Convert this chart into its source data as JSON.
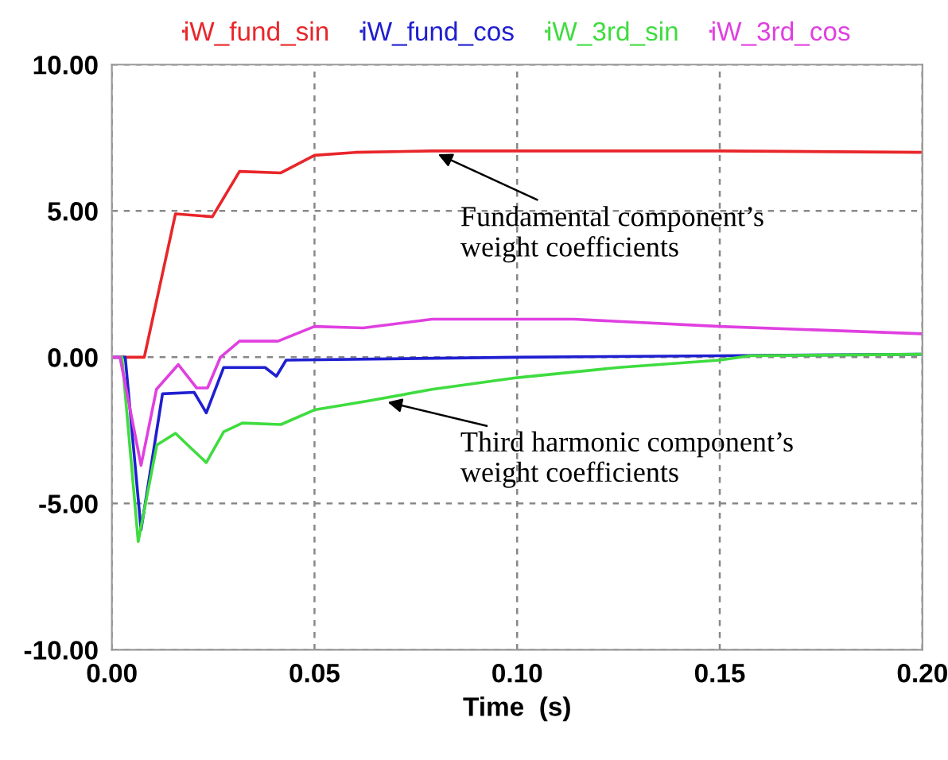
{
  "chart_data": {
    "type": "line",
    "xlabel": "Time  (s)",
    "xlim": [
      0,
      0.2
    ],
    "ylim": [
      -10,
      10
    ],
    "xticks": [
      {
        "value": 0,
        "label": "0.00"
      },
      {
        "value": 0.05,
        "label": "0.05"
      },
      {
        "value": 0.1,
        "label": "0.10"
      },
      {
        "value": 0.15,
        "label": "0.15"
      },
      {
        "value": 0.2,
        "label": "0.20"
      }
    ],
    "yticks": [
      {
        "value": -10,
        "label": "-10.00"
      },
      {
        "value": -5,
        "label": "-5.00"
      },
      {
        "value": 0,
        "label": "0.00"
      },
      {
        "value": 5,
        "label": "5.00"
      },
      {
        "value": 10,
        "label": "10.00"
      }
    ],
    "grid": true,
    "legend": "top",
    "line_style": "solid",
    "marker": "none",
    "series": [
      {
        "name": "iW_fund_sin",
        "color": "#e8262a",
        "x": [
          0,
          0.008,
          0.0157,
          0.0248,
          0.0315,
          0.0417,
          0.05,
          0.06,
          0.079,
          0.1,
          0.15,
          0.2
        ],
        "values": [
          0,
          0,
          4.9,
          4.8,
          6.35,
          6.3,
          6.9,
          7.0,
          7.05,
          7.05,
          7.05,
          7.0
        ]
      },
      {
        "name": "iW_fund_cos",
        "color": "#1f1fd0",
        "x": [
          0,
          0.0033,
          0.0072,
          0.0125,
          0.0203,
          0.0233,
          0.0276,
          0.0378,
          0.0406,
          0.043,
          0.1,
          0.15,
          0.2
        ],
        "values": [
          0,
          0,
          -5.9,
          -1.25,
          -1.2,
          -1.9,
          -0.35,
          -0.35,
          -0.65,
          -0.1,
          0,
          0.05,
          0.1
        ]
      },
      {
        "name": "iW_3rd_sin",
        "color": "#3fdc3f",
        "x": [
          0,
          0.0025,
          0.0065,
          0.0111,
          0.0157,
          0.0187,
          0.0233,
          0.0276,
          0.0322,
          0.0417,
          0.05,
          0.063,
          0.079,
          0.1,
          0.125,
          0.15,
          0.1575,
          0.2
        ],
        "values": [
          0,
          0,
          -6.3,
          -3.0,
          -2.6,
          -3.0,
          -3.6,
          -2.55,
          -2.25,
          -2.3,
          -1.8,
          -1.5,
          -1.1,
          -0.7,
          -0.35,
          -0.1,
          0.05,
          0.1
        ]
      },
      {
        "name": "iW_3rd_cos",
        "color": "#e040e0",
        "x": [
          0,
          0.002,
          0.0072,
          0.011,
          0.0164,
          0.0209,
          0.0236,
          0.0268,
          0.0315,
          0.041,
          0.05,
          0.062,
          0.079,
          0.114,
          0.15,
          0.2
        ],
        "values": [
          0,
          0,
          -3.7,
          -1.1,
          -0.25,
          -1.05,
          -1.05,
          0,
          0.55,
          0.55,
          1.05,
          1.0,
          1.3,
          1.3,
          1.05,
          0.8
        ]
      }
    ],
    "annotations": [
      {
        "text": "Fundamental component’s\nweight coefficients",
        "x": 0.0795,
        "y": 7.0
      },
      {
        "text": "Third harmonic component’s\nweight coefficients",
        "x": 0.067,
        "y": -1.5
      }
    ]
  }
}
